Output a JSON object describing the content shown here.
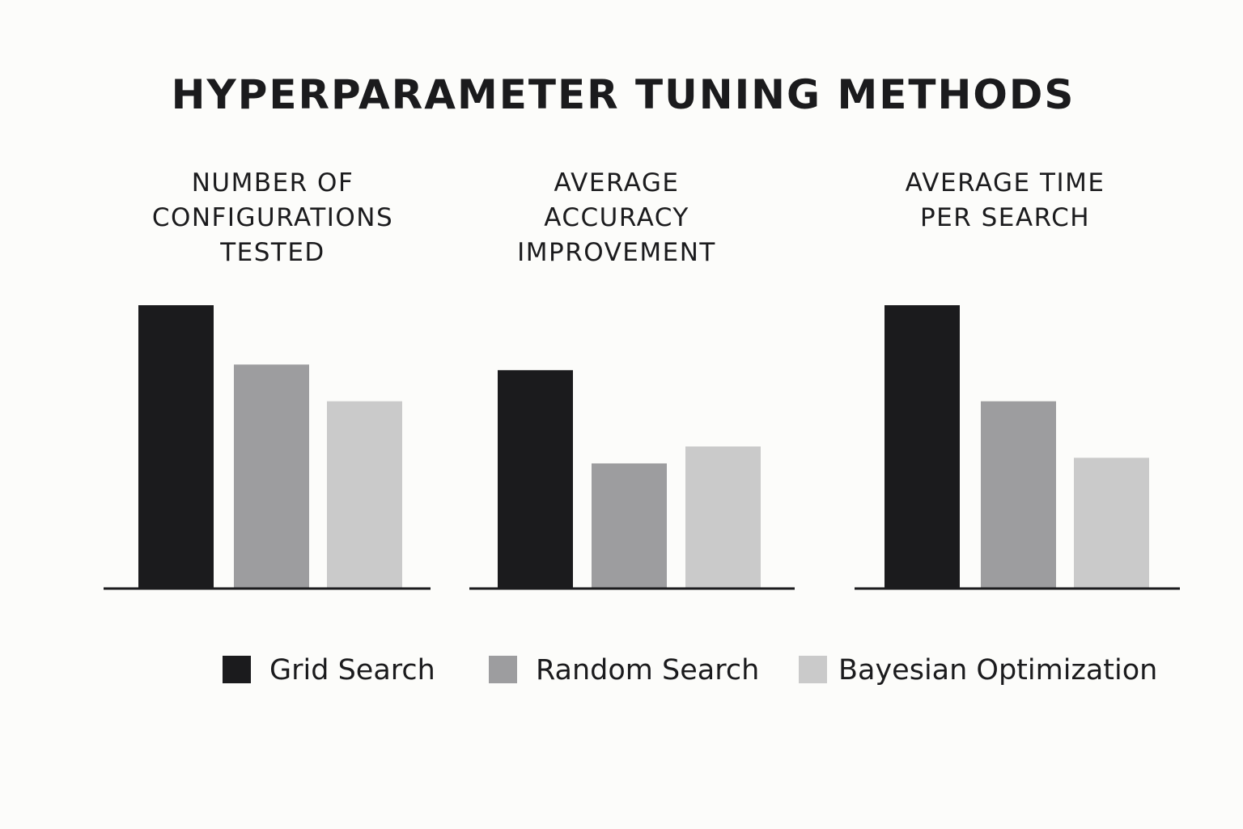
{
  "title": "HYPERPARAMETER TUNING METHODS",
  "chart_data": [
    {
      "type": "bar",
      "title": "NUMBER OF CONFIGURATIONS TESTED",
      "title_lines": [
        "NUMBER OF",
        "CONFIGURATIONS",
        "TESTED"
      ],
      "categories": [
        "Grid Search",
        "Random Search",
        "Bayesian Optimization"
      ],
      "values": [
        100,
        79,
        66
      ],
      "ylim": [
        0,
        100
      ],
      "grid": false
    },
    {
      "type": "bar",
      "title": "AVERAGE ACCURACY IMPROVEMENT",
      "title_lines": [
        "AVERAGE",
        "ACCURACY",
        "IMPROVEMENT"
      ],
      "categories": [
        "Grid Search",
        "Random Search",
        "Bayesian Optimization"
      ],
      "values": [
        77,
        44,
        50
      ],
      "ylim": [
        0,
        100
      ],
      "grid": false
    },
    {
      "type": "bar",
      "title": "AVERAGE TIME PER SEARCH",
      "title_lines": [
        "AVERAGE TIME",
        "PER SEARCH"
      ],
      "categories": [
        "Grid Search",
        "Random Search",
        "Bayesian Optimization"
      ],
      "values": [
        100,
        66,
        46
      ],
      "ylim": [
        0,
        100
      ],
      "grid": false
    }
  ],
  "legend": {
    "placement": "bottom",
    "items": [
      {
        "label": "Grid Search",
        "color": "#1b1b1d"
      },
      {
        "label": "Random Search",
        "color": "#9d9d9f"
      },
      {
        "label": "Bayesian Optimization",
        "color": "#cacaca"
      }
    ]
  }
}
